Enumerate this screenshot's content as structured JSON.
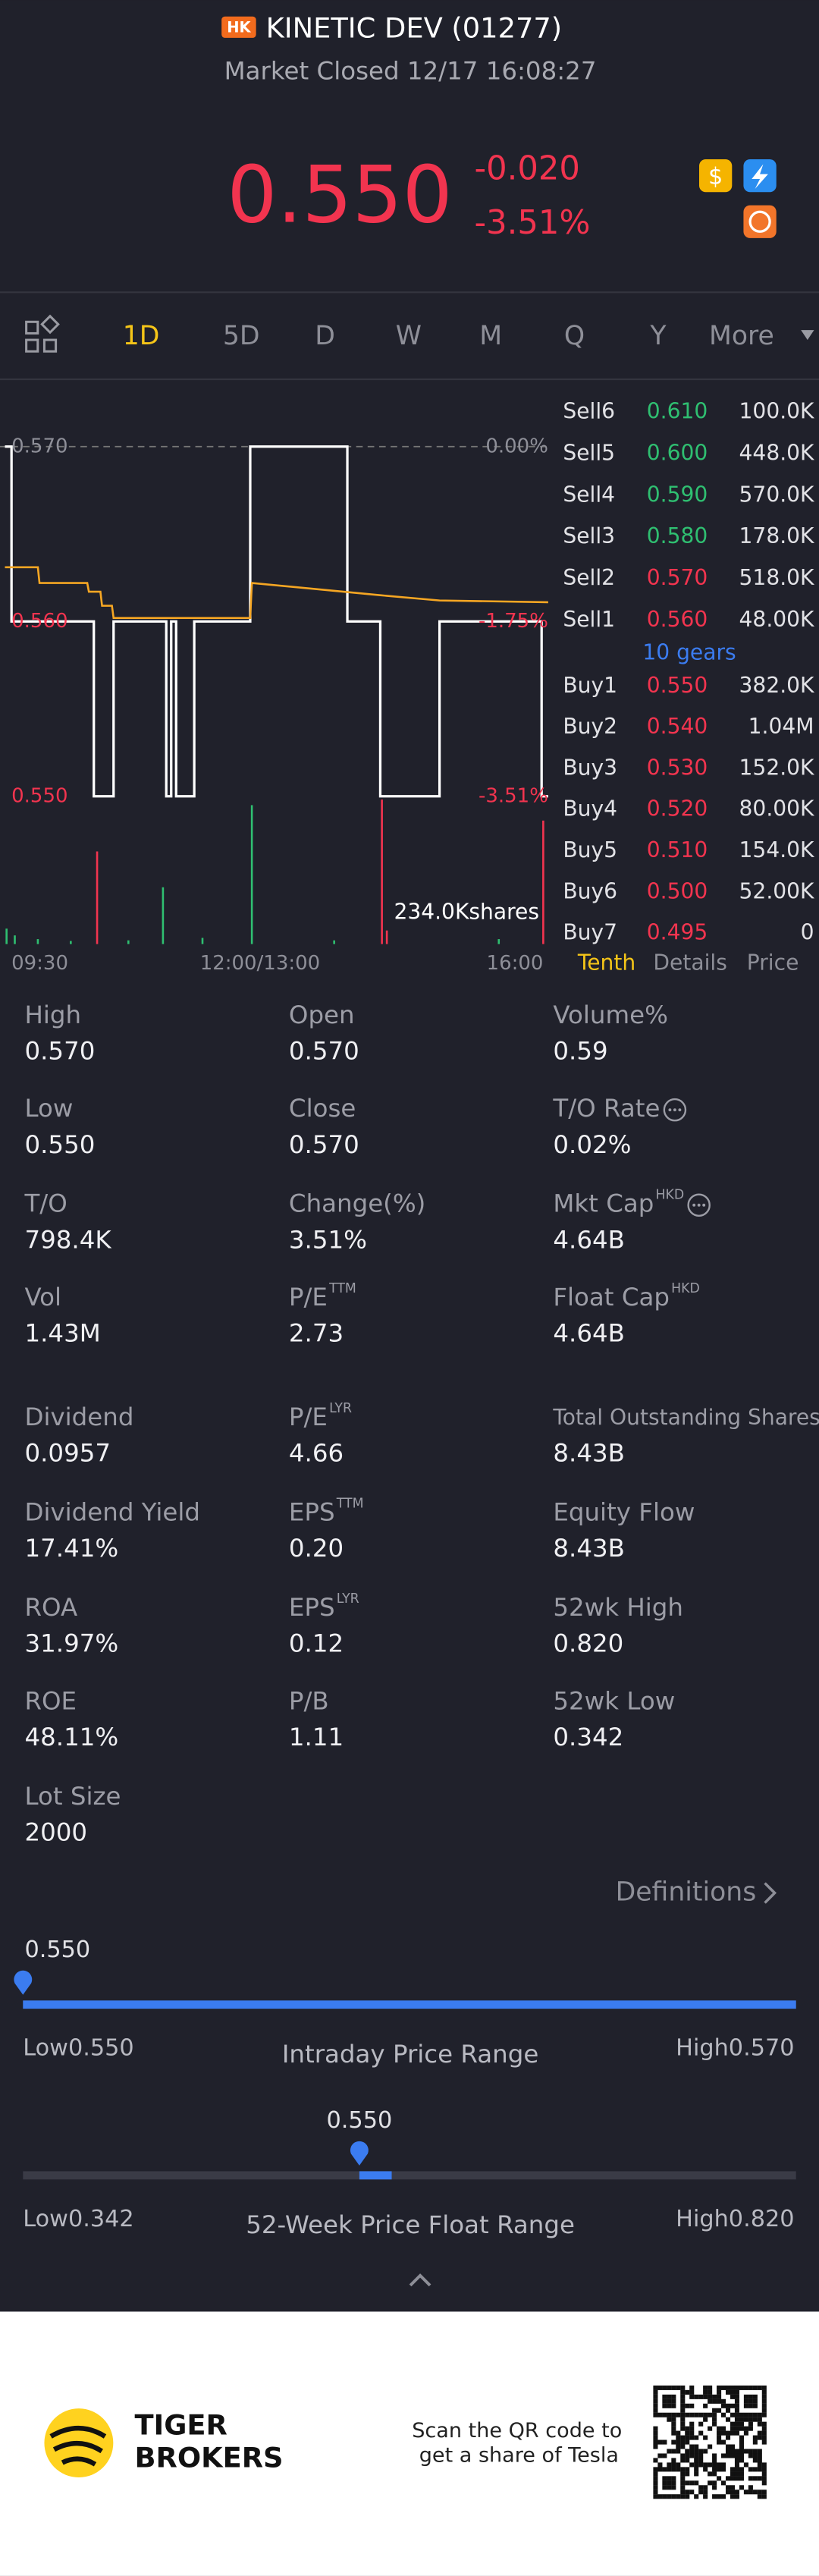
{
  "header": {
    "badge": "HK",
    "title": "KINETIC DEV (01277)",
    "status": "Market Closed 12/17 16:08:27",
    "price": "0.550",
    "change": "-0.020",
    "change_pct": "-3.51%"
  },
  "tabs": [
    "1D",
    "5D",
    "D",
    "W",
    "M",
    "Q",
    "Y",
    "More"
  ],
  "chart": {
    "type": "line",
    "xlim": [
      0,
      330
    ],
    "xticks": [
      {
        "value": 0,
        "label": "09:30"
      },
      {
        "value": 150,
        "label": "12:00/13:00"
      },
      {
        "value": 330,
        "label": "16:00"
      }
    ],
    "ylim": [
      0.55,
      0.57
    ],
    "yticks": [
      {
        "value": 0.57,
        "label": "0.570"
      },
      {
        "value": 0.56,
        "label": "0.560"
      },
      {
        "value": 0.55,
        "label": "0.550"
      }
    ],
    "pct_ticks": [
      "0.00%",
      "-1.75%",
      "-3.51%"
    ],
    "series": [
      {
        "name": "Price",
        "color": "#ffffff",
        "x": [
          0,
          4,
          54,
          66,
          98,
          101,
          104,
          115,
          149,
          208,
          228,
          264,
          326,
          330
        ],
        "values": [
          0.57,
          0.56,
          0.55,
          0.56,
          0.55,
          0.56,
          0.55,
          0.56,
          0.57,
          0.56,
          0.55,
          0.56,
          0.55,
          0.55
        ]
      },
      {
        "name": "Average",
        "color": "#f5a623",
        "x": [
          0,
          20,
          21,
          50,
          51,
          58,
          59,
          65,
          66,
          149,
          150,
          228,
          264,
          330
        ],
        "values": [
          0.5631,
          0.5631,
          0.5622,
          0.5622,
          0.5617,
          0.5617,
          0.5609,
          0.5609,
          0.5602,
          0.5602,
          0.5622,
          0.5615,
          0.5612,
          0.5611
        ]
      }
    ],
    "volume": {
      "label": "234.0Kshares",
      "ylim": [
        0,
        234
      ],
      "x": [
        1,
        6,
        20,
        40,
        56,
        75,
        96,
        120,
        150,
        200,
        229,
        232,
        300,
        327
      ],
      "values": [
        25,
        14,
        8,
        5,
        150,
        6,
        92,
        10,
        225,
        6,
        234,
        22,
        8,
        200
      ],
      "colors": [
        "#2fbf71",
        "#2fbf71",
        "#2fbf71",
        "#2fbf71",
        "#f2344f",
        "#2fbf71",
        "#2fbf71",
        "#2fbf71",
        "#2fbf71",
        "#2fbf71",
        "#f2344f",
        "#f2344f",
        "#2fbf71",
        "#f2344f"
      ]
    }
  },
  "order_book": {
    "rows": [
      {
        "label": "Sell6",
        "price": "0.610",
        "volume": "100.0K",
        "color": "#2fbf71"
      },
      {
        "label": "Sell5",
        "price": "0.600",
        "volume": "448.0K",
        "color": "#2fbf71"
      },
      {
        "label": "Sell4",
        "price": "0.590",
        "volume": "570.0K",
        "color": "#2fbf71"
      },
      {
        "label": "Sell3",
        "price": "0.580",
        "volume": "178.0K",
        "color": "#2fbf71"
      },
      {
        "label": "Sell2",
        "price": "0.570",
        "volume": "518.0K",
        "color": "#f2344f"
      },
      {
        "label": "Sell1",
        "price": "0.560",
        "volume": "48.00K",
        "color": "#f2344f"
      },
      {
        "label": "Buy1",
        "price": "0.550",
        "volume": "382.0K",
        "color": "#f2344f"
      },
      {
        "label": "Buy2",
        "price": "0.540",
        "volume": "1.04M",
        "color": "#f2344f"
      },
      {
        "label": "Buy3",
        "price": "0.530",
        "volume": "152.0K",
        "color": "#f2344f"
      },
      {
        "label": "Buy4",
        "price": "0.520",
        "volume": "80.00K",
        "color": "#f2344f"
      },
      {
        "label": "Buy5",
        "price": "0.510",
        "volume": "154.0K",
        "color": "#f2344f"
      },
      {
        "label": "Buy6",
        "price": "0.500",
        "volume": "52.00K",
        "color": "#f2344f"
      },
      {
        "label": "Buy7",
        "price": "0.495",
        "volume": "0",
        "color": "#f2344f"
      }
    ],
    "gears": "10 gears",
    "tabs": [
      "Tenth",
      "Details",
      "Price"
    ]
  },
  "stats": [
    {
      "label": "High",
      "value": "0.570"
    },
    {
      "label": "Open",
      "value": "0.570"
    },
    {
      "label": "Volume%",
      "value": "0.59"
    },
    {
      "label": "Low",
      "value": "0.550"
    },
    {
      "label": "Close",
      "value": "0.570"
    },
    {
      "label": "T/O Rate",
      "value": "0.02%",
      "icon": true
    },
    {
      "label": "T/O",
      "value": "798.4K"
    },
    {
      "label": "Change(%)",
      "value": "3.51%"
    },
    {
      "label": "Mkt Cap",
      "sup": "HKD",
      "value": "4.64B",
      "icon": true
    },
    {
      "label": "Vol",
      "value": "1.43M"
    },
    {
      "label": "P/E",
      "sup": "TTM",
      "value": "2.73"
    },
    {
      "label": "Float Cap",
      "sup": "HKD",
      "value": "4.64B"
    },
    {
      "label": "Dividend",
      "value": "0.0957"
    },
    {
      "label": "P/E",
      "sup": "LYR",
      "value": "4.66"
    },
    {
      "label": "Total Outstanding Shares",
      "value": "8.43B"
    },
    {
      "label": "Dividend Yield",
      "value": "17.41%"
    },
    {
      "label": "EPS",
      "sup": "TTM",
      "value": "0.20"
    },
    {
      "label": "Equity Flow",
      "value": "8.43B"
    },
    {
      "label": "ROA",
      "value": "31.97%"
    },
    {
      "label": "EPS",
      "sup": "LYR",
      "value": "0.12"
    },
    {
      "label": "52wk High",
      "value": "0.820"
    },
    {
      "label": "ROE",
      "value": "48.11%"
    },
    {
      "label": "P/B",
      "value": "1.11"
    },
    {
      "label": "52wk Low",
      "value": "0.342"
    },
    {
      "label": "Lot Size",
      "value": "2000"
    }
  ],
  "definitions": "Definitions",
  "ranges": [
    {
      "title": "Intraday Price Range",
      "current": {
        "value": 0.55,
        "label": "0.550"
      },
      "low_prefix": "Low",
      "low": {
        "value": 0.55,
        "label": "0.550"
      },
      "high_prefix": "High",
      "high": {
        "value": 0.57,
        "label": "0.570"
      }
    },
    {
      "title": "52-Week Price Float Range",
      "current": {
        "value": 0.55,
        "label": "0.550"
      },
      "low_prefix": "Low",
      "low": {
        "value": 0.342,
        "label": "0.342"
      },
      "high_prefix": "High",
      "high": {
        "value": 0.82,
        "label": "0.820"
      }
    }
  ],
  "footer": {
    "brand_line1": "TIGER",
    "brand_line2": "BROKERS",
    "qr_line1": "Scan the QR code to",
    "qr_line2": "get a share of Tesla"
  }
}
